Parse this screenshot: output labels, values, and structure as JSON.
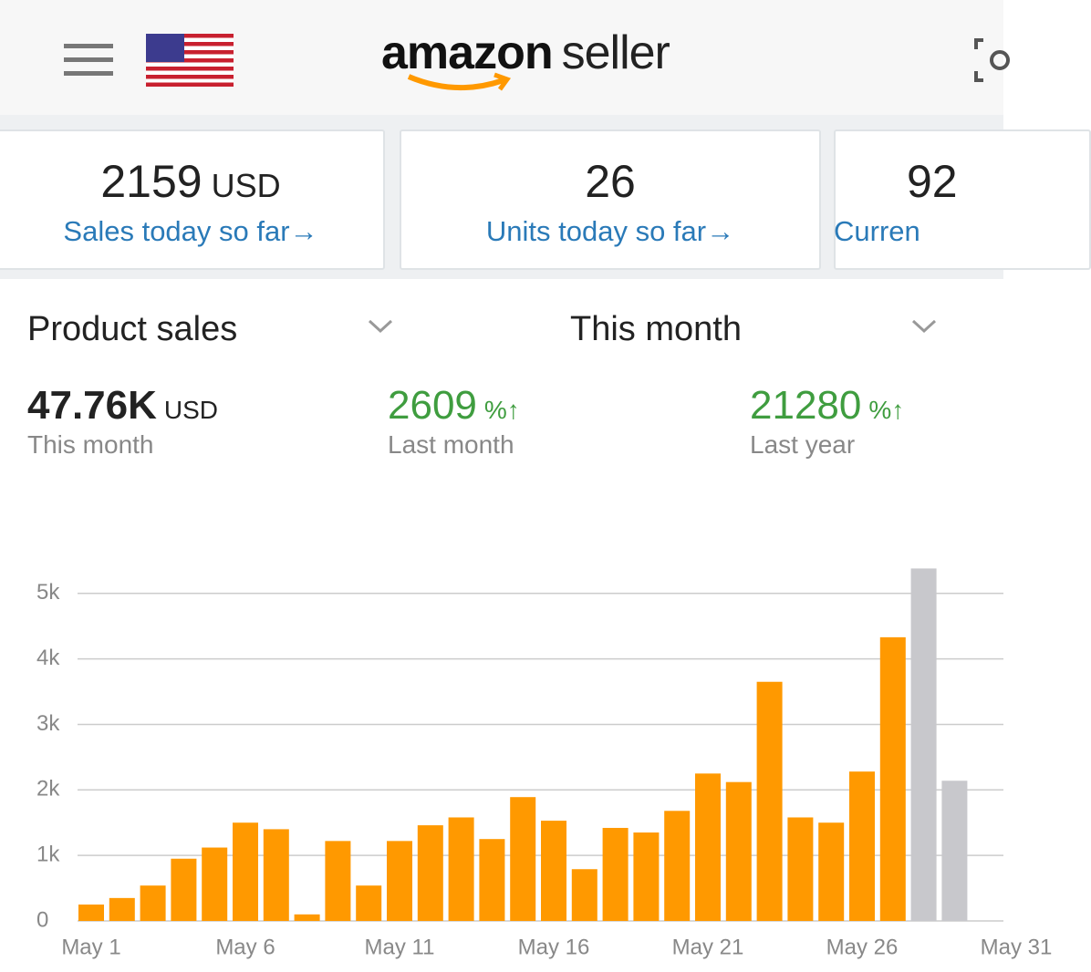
{
  "header": {
    "logo_main": "amazon",
    "logo_sub": "seller"
  },
  "cards": [
    {
      "value": "2159",
      "unit": "USD",
      "label": "Sales today so far→"
    },
    {
      "value": "26",
      "label": "Units today so far→"
    },
    {
      "value": "92",
      "label": "Curren"
    }
  ],
  "filters": {
    "metric": "Product sales",
    "period": "This month"
  },
  "stats": [
    {
      "value": "47.76K",
      "unit": "USD",
      "label": "This month"
    },
    {
      "value": "2609",
      "unit": "%↑",
      "label": "Last month"
    },
    {
      "value": "21280",
      "unit": "%↑",
      "label": "Last year"
    }
  ],
  "chart_data": {
    "type": "bar",
    "categories": [
      "May 1",
      null,
      null,
      null,
      null,
      "May 6",
      null,
      null,
      null,
      null,
      "May 11",
      null,
      null,
      null,
      null,
      "May 16",
      null,
      null,
      null,
      null,
      "May 21",
      null,
      null,
      null,
      null,
      "May 26",
      null,
      null,
      null,
      null,
      "May 31"
    ],
    "values": [
      250,
      350,
      540,
      950,
      1120,
      1500,
      1400,
      100,
      1220,
      540,
      1220,
      1460,
      1580,
      1250,
      1890,
      1530,
      790,
      1420,
      1350,
      1680,
      2250,
      2120,
      3650,
      1580,
      1500,
      2280,
      4330,
      5380,
      2140,
      null,
      null
    ],
    "colors": [
      "#ff9900",
      "#ff9900",
      "#ff9900",
      "#ff9900",
      "#ff9900",
      "#ff9900",
      "#ff9900",
      "#ff9900",
      "#ff9900",
      "#ff9900",
      "#ff9900",
      "#ff9900",
      "#ff9900",
      "#ff9900",
      "#ff9900",
      "#ff9900",
      "#ff9900",
      "#ff9900",
      "#ff9900",
      "#ff9900",
      "#ff9900",
      "#ff9900",
      "#ff9900",
      "#ff9900",
      "#ff9900",
      "#ff9900",
      "#ff9900",
      "#c8c8cc",
      "#c8c8cc",
      "#c8c8cc",
      "#c8c8cc"
    ],
    "ylim": [
      0,
      5400
    ],
    "yticks": [
      0,
      {
        "value": 1000,
        "label": "1k"
      },
      {
        "value": 2000,
        "label": "2k"
      },
      {
        "value": 3000,
        "label": "3k"
      },
      {
        "value": 4000,
        "label": "4k"
      },
      {
        "value": 5000,
        "label": "5k"
      }
    ],
    "grid": true
  }
}
